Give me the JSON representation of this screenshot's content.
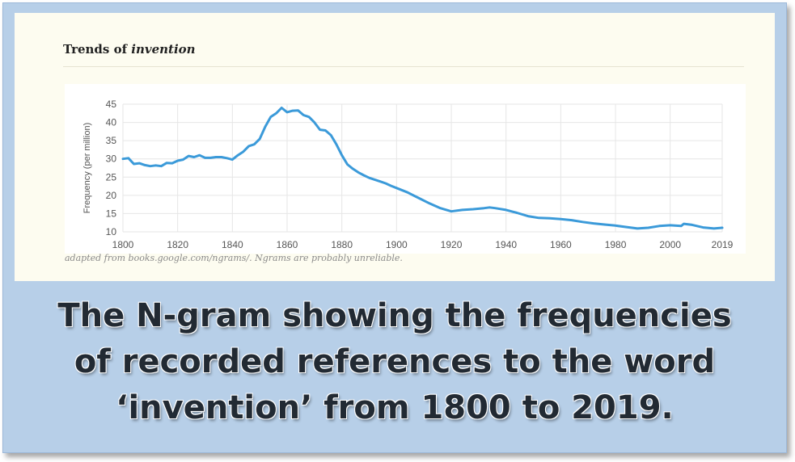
{
  "chart_title_prefix": "Trends of ",
  "chart_title_word": "invention",
  "source_note": "adapted from books.google.com/ngrams/. Ngrams are probably unreliable.",
  "main_caption": "The N-gram showing the frequencies of recorded references to the word ‘invention’ from 1800 to 2019.",
  "colors": {
    "line": "#3b9ad9",
    "grid": "#e6e6e6",
    "caption_bg": "#b7cfe8",
    "panel_bg": "#fdfcf0"
  },
  "chart_data": {
    "type": "line",
    "title": "Trends of invention",
    "xlabel": "",
    "ylabel": "Frequency (per million)",
    "xlim": [
      1800,
      2019
    ],
    "ylim": [
      10,
      45
    ],
    "xticks": [
      1800,
      1820,
      1840,
      1860,
      1880,
      1900,
      1920,
      1940,
      1960,
      1980,
      2000,
      2019
    ],
    "yticks": [
      10,
      15,
      20,
      25,
      30,
      35,
      40,
      45
    ],
    "grid": true,
    "series": [
      {
        "name": "",
        "x": [
          1800,
          1802,
          1804,
          1806,
          1808,
          1810,
          1812,
          1814,
          1816,
          1818,
          1820,
          1822,
          1824,
          1826,
          1828,
          1830,
          1832,
          1834,
          1836,
          1838,
          1840,
          1842,
          1844,
          1846,
          1848,
          1850,
          1852,
          1854,
          1856,
          1858,
          1860,
          1862,
          1864,
          1866,
          1868,
          1870,
          1872,
          1874,
          1876,
          1878,
          1880,
          1882,
          1884,
          1886,
          1888,
          1890,
          1892,
          1894,
          1896,
          1898,
          1900,
          1904,
          1908,
          1912,
          1916,
          1920,
          1924,
          1928,
          1932,
          1934,
          1936,
          1940,
          1944,
          1948,
          1952,
          1956,
          1960,
          1964,
          1968,
          1972,
          1976,
          1980,
          1984,
          1988,
          1992,
          1996,
          2000,
          2004,
          2005,
          2008,
          2012,
          2016,
          2019
        ],
        "y": [
          30,
          30.2,
          28.6,
          28.8,
          28.3,
          28,
          28.2,
          28,
          28.9,
          28.8,
          29.5,
          29.8,
          30.8,
          30.5,
          31,
          30.3,
          30.3,
          30.5,
          30.5,
          30.2,
          29.8,
          31,
          32,
          33.5,
          34,
          35.5,
          38.8,
          41.5,
          42.5,
          44,
          42.8,
          43.2,
          43.3,
          42,
          41.5,
          40,
          38,
          37.8,
          36.5,
          34,
          31,
          28.5,
          27.3,
          26.3,
          25.5,
          24.8,
          24.3,
          23.8,
          23.3,
          22.6,
          22,
          20.8,
          19.3,
          17.8,
          16.5,
          15.6,
          16,
          16.2,
          16.5,
          16.7,
          16.5,
          16,
          15.2,
          14.3,
          13.8,
          13.7,
          13.5,
          13.2,
          12.7,
          12.3,
          12,
          11.7,
          11.3,
          10.9,
          11.1,
          11.6,
          11.8,
          11.6,
          12.2,
          11.9,
          11.2,
          10.9,
          11.1
        ]
      }
    ]
  }
}
